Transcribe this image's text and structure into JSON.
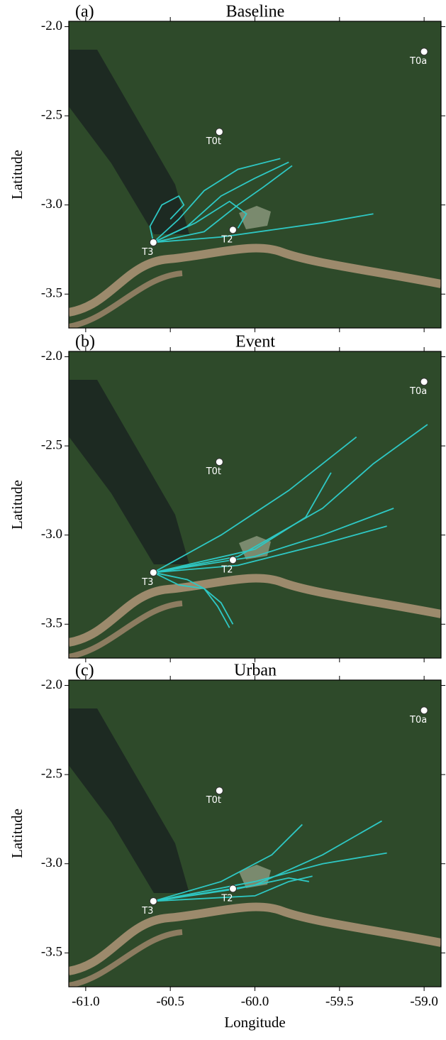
{
  "chart_data": [
    {
      "type": "map",
      "panel_label": "(a)",
      "title": "Baseline",
      "ylabel": "Latitude",
      "xlim": [
        -61.1,
        -58.9
      ],
      "ylim": [
        -3.69,
        -1.97
      ],
      "xticks": [
        -61,
        -60.5,
        -60,
        -59.5,
        -59
      ],
      "yticks": [
        {
          "value": -2.0,
          "label": "-2.0"
        },
        -2.5,
        {
          "value": -3.0,
          "label": "-3.0"
        },
        -3.5
      ],
      "sites": {
        "names": [
          "T0a",
          "T0t",
          "T3",
          "T2"
        ],
        "x": [
          -59.0,
          -60.21,
          -60.6,
          -60.13
        ],
        "values": [
          -2.14,
          -2.59,
          -3.21,
          -3.14
        ]
      },
      "color": "#2ec8c4",
      "trajectories": [
        {
          "x": [
            -60.6,
            -60.62,
            -60.55,
            -60.45,
            -60.42,
            -60.5
          ],
          "values": [
            -3.21,
            -3.12,
            -3.0,
            -2.95,
            -3.0,
            -3.08
          ]
        },
        {
          "x": [
            -60.6,
            -60.45,
            -60.3,
            -60.1,
            -59.85
          ],
          "values": [
            -3.21,
            -3.08,
            -2.92,
            -2.8,
            -2.74
          ]
        },
        {
          "x": [
            -60.6,
            -60.4,
            -60.2,
            -60.0,
            -59.8
          ],
          "values": [
            -3.21,
            -3.12,
            -2.95,
            -2.85,
            -2.76
          ]
        },
        {
          "x": [
            -60.6,
            -60.3,
            -60.1,
            -59.95,
            -59.78
          ],
          "values": [
            -3.21,
            -3.15,
            -3.0,
            -2.9,
            -2.78
          ]
        },
        {
          "x": [
            -60.6,
            -60.2,
            -59.9,
            -59.6,
            -59.3
          ],
          "values": [
            -3.21,
            -3.18,
            -3.14,
            -3.1,
            -3.05
          ]
        },
        {
          "x": [
            -60.6,
            -60.35,
            -60.15,
            -60.05,
            -60.1
          ],
          "values": [
            -3.21,
            -3.1,
            -2.98,
            -3.05,
            -3.13
          ]
        }
      ]
    },
    {
      "type": "map",
      "panel_label": "(b)",
      "title": "Event",
      "ylabel": "Latitude",
      "xlim": [
        -61.1,
        -58.9
      ],
      "ylim": [
        -3.69,
        -1.97
      ],
      "xticks": [
        -61,
        -60.5,
        -60,
        -59.5,
        -59
      ],
      "yticks": [
        {
          "value": -2.0,
          "label": "-2.0"
        },
        -2.5,
        {
          "value": -3.0,
          "label": "-3.0"
        },
        -3.5
      ],
      "sites": {
        "names": [
          "T0a",
          "T0t",
          "T3",
          "T2"
        ],
        "x": [
          -59.0,
          -60.21,
          -60.6,
          -60.13
        ],
        "values": [
          -2.14,
          -2.59,
          -3.21,
          -3.14
        ]
      },
      "color": "#2ec8c4",
      "trajectories": [
        {
          "x": [
            -60.6,
            -60.2,
            -59.8,
            -59.4
          ],
          "values": [
            -3.21,
            -3.0,
            -2.75,
            -2.45
          ]
        },
        {
          "x": [
            -60.6,
            -60.1,
            -59.6,
            -59.3,
            -58.98
          ],
          "values": [
            -3.21,
            -3.12,
            -2.85,
            -2.6,
            -2.38
          ]
        },
        {
          "x": [
            -60.6,
            -60.0,
            -59.7,
            -59.55
          ],
          "values": [
            -3.21,
            -3.08,
            -2.9,
            -2.65
          ]
        },
        {
          "x": [
            -60.6,
            -60.0,
            -59.6,
            -59.18
          ],
          "values": [
            -3.21,
            -3.12,
            -3.0,
            -2.85
          ]
        },
        {
          "x": [
            -60.6,
            -60.1,
            -59.6,
            -59.22
          ],
          "values": [
            -3.21,
            -3.17,
            -3.05,
            -2.95
          ]
        },
        {
          "x": [
            -60.6,
            -60.45,
            -60.3,
            -60.2,
            -60.13
          ],
          "values": [
            -3.21,
            -3.28,
            -3.3,
            -3.38,
            -3.5
          ]
        },
        {
          "x": [
            -60.6,
            -60.4,
            -60.3,
            -60.22,
            -60.15
          ],
          "values": [
            -3.21,
            -3.25,
            -3.3,
            -3.4,
            -3.52
          ]
        }
      ]
    },
    {
      "type": "map",
      "panel_label": "(c)",
      "title": "Urban",
      "ylabel": "Latitude",
      "xlabel": "Longitude",
      "xlim": [
        -61.1,
        -58.9
      ],
      "ylim": [
        -3.69,
        -1.97
      ],
      "xticks": [
        {
          "value": -61.0,
          "label": "-61.0"
        },
        -60.5,
        {
          "value": -60.0,
          "label": "-60.0"
        },
        -59.5,
        {
          "value": -59.0,
          "label": "-59.0"
        }
      ],
      "yticks": [
        {
          "value": -2.0,
          "label": "-2.0"
        },
        -2.5,
        {
          "value": -3.0,
          "label": "-3.0"
        },
        -3.5
      ],
      "sites": {
        "names": [
          "T0a",
          "T0t",
          "T3",
          "T2"
        ],
        "x": [
          -59.0,
          -60.21,
          -60.6,
          -60.13
        ],
        "values": [
          -2.14,
          -2.59,
          -3.21,
          -3.14
        ]
      },
      "color": "#2ec8c4",
      "trajectories": [
        {
          "x": [
            -60.6,
            -60.2,
            -59.9,
            -59.72
          ],
          "values": [
            -3.21,
            -3.1,
            -2.95,
            -2.78
          ]
        },
        {
          "x": [
            -60.6,
            -60.0,
            -59.6,
            -59.25
          ],
          "values": [
            -3.21,
            -3.12,
            -2.95,
            -2.76
          ]
        },
        {
          "x": [
            -60.6,
            -60.0,
            -59.6,
            -59.22
          ],
          "values": [
            -3.21,
            -3.1,
            -3.0,
            -2.94
          ]
        },
        {
          "x": [
            -60.6,
            -60.1,
            -59.8,
            -59.68
          ],
          "values": [
            -3.21,
            -3.14,
            -3.08,
            -3.1
          ]
        },
        {
          "x": [
            -60.6,
            -60.0,
            -59.8,
            -59.66
          ],
          "values": [
            -3.21,
            -3.18,
            -3.1,
            -3.07
          ]
        }
      ]
    }
  ]
}
